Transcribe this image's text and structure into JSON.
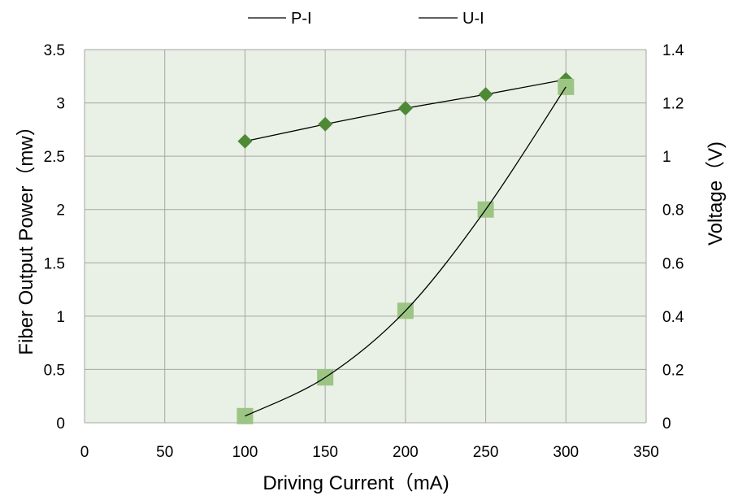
{
  "chart_data": {
    "type": "line",
    "title": "",
    "xlabel": "Driving Current（mA)",
    "ylabel_left": "Fiber Output Power（mw）",
    "ylabel_right": "Voltage（V)",
    "xlim": [
      0,
      350
    ],
    "ylim_left": [
      0,
      3.5
    ],
    "ylim_right": [
      0,
      1.4
    ],
    "x_ticks": [
      "0",
      "50",
      "100",
      "150",
      "200",
      "250",
      "300",
      "350"
    ],
    "y_left_ticks": [
      "0",
      "0.5",
      "1",
      "1.5",
      "2",
      "2.5",
      "3",
      "3.5"
    ],
    "y_right_ticks": [
      "0",
      "0.2",
      "0.4",
      "0.6",
      "0.8",
      "1",
      "1.2",
      "1.4"
    ],
    "grid": true,
    "legend_position": "top",
    "colors": {
      "plot_background": "#e9f0e5",
      "grid": "#a6a6a6",
      "diamond_marker": "#4e8a35",
      "square_marker": "#9cc584",
      "line": "#000000"
    },
    "series": [
      {
        "name": "P-I",
        "axis": "left",
        "marker": "diamond",
        "x": [
          100,
          150,
          200,
          250,
          300
        ],
        "values": [
          2.64,
          2.8,
          2.95,
          3.08,
          3.22
        ]
      },
      {
        "name": "U-I",
        "axis": "right",
        "marker": "square",
        "x": [
          100,
          150,
          200,
          250,
          300
        ],
        "values": [
          0.025,
          0.17,
          0.42,
          0.8,
          1.26
        ]
      }
    ]
  }
}
